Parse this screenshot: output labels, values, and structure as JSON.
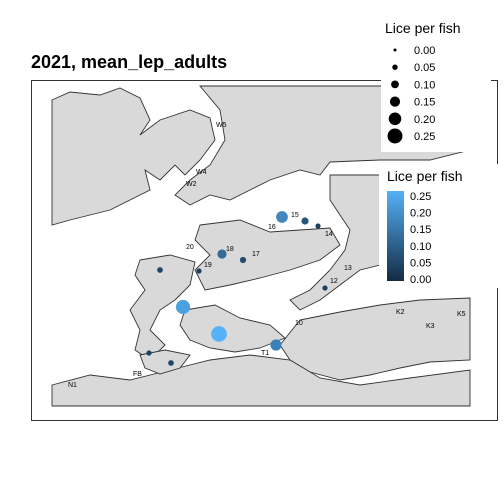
{
  "title": "2021, mean_lep_adults",
  "legend_size": {
    "title": "Lice per fish",
    "entries": [
      {
        "label": "0.00",
        "value": 0.0
      },
      {
        "label": "0.05",
        "value": 0.05
      },
      {
        "label": "0.10",
        "value": 0.1
      },
      {
        "label": "0.15",
        "value": 0.15
      },
      {
        "label": "0.20",
        "value": 0.2
      },
      {
        "label": "0.25",
        "value": 0.25
      }
    ]
  },
  "legend_color": {
    "title": "Lice per fish",
    "ticks": [
      "0.25",
      "0.20",
      "0.15",
      "0.10",
      "0.05",
      "0.00"
    ],
    "low_color": "#132B43",
    "high_color": "#56B1F7"
  },
  "colors": {
    "land": "#d9d9d9",
    "water": "#ffffff",
    "coast": "#333333"
  },
  "site_labels": [
    "W5",
    "W4",
    "W2",
    "15",
    "16",
    "14",
    "20",
    "18",
    "17",
    "19",
    "13",
    "12",
    "K2",
    "K3",
    "K5",
    "10",
    "T1",
    "FB",
    "N1"
  ],
  "sites": [
    {
      "id": "15",
      "value": 0.17
    },
    {
      "id": "16",
      "value": 0.08
    },
    {
      "id": "14",
      "value": 0.04
    },
    {
      "id": "18",
      "value": 0.12
    },
    {
      "id": "17",
      "value": 0.06
    },
    {
      "id": "20",
      "value": 0.05
    },
    {
      "id": "19",
      "value": 0.04
    },
    {
      "id": "12",
      "value": 0.04
    },
    {
      "id": "a",
      "value": 0.22
    },
    {
      "id": "b",
      "value": 0.25
    },
    {
      "id": "T1",
      "value": 0.16
    },
    {
      "id": "c",
      "value": 0.04
    },
    {
      "id": "d",
      "value": 0.05
    }
  ]
}
